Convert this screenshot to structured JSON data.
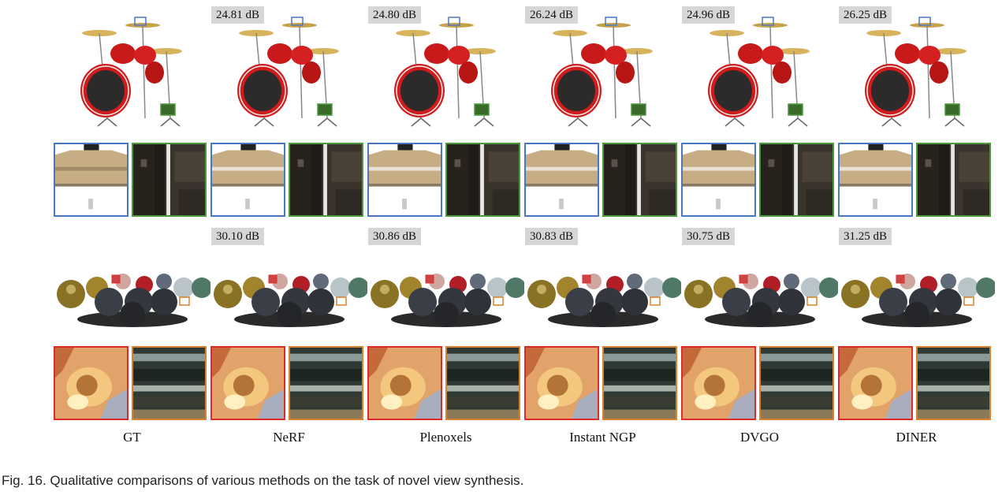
{
  "figure": {
    "caption": "Fig. 16. Qualitative comparisons of various methods on the task of novel view synthesis.",
    "methods": [
      "GT",
      "NeRF",
      "Plenoxels",
      "Instant NGP",
      "DVGO",
      "DINER"
    ],
    "drums_psnr": [
      "",
      "24.81 dB",
      "24.80 dB",
      "26.24 dB",
      "24.96 dB",
      "26.25 dB"
    ],
    "materials_psnr": [
      "",
      "30.10 dB",
      "30.86 dB",
      "30.83 dB",
      "30.75 dB",
      "31.25 dB"
    ],
    "colors": {
      "blue_box": "#4a77c4",
      "green_box": "#4c9a3e",
      "red_box": "#e02a2a",
      "orange_box": "#d9822b",
      "label_bg": "#d6d6d6"
    }
  }
}
